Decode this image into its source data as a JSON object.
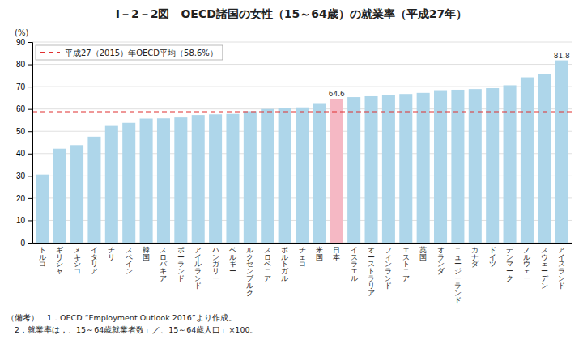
{
  "chart_data": {
    "type": "bar",
    "title": "I－2－2図　OECD諸国の女性（15～64歳）の就業率（平成27年）",
    "ylabel": "(%)",
    "categories": [
      "トルコ",
      "ギリシャ",
      "メキシコ",
      "イタリア",
      "チリ",
      "スペイン",
      "韓国",
      "スロバキア",
      "ポーランド",
      "アイルランド",
      "ハンガリー",
      "ベルギー",
      "ルクセンブルク",
      "スロベニア",
      "ポルトガル",
      "チェコ",
      "米国",
      "日本",
      "イスラエル",
      "オーストラリア",
      "フィンランド",
      "エストニア",
      "英国",
      "オランダ",
      "ニュージーランド",
      "カナダ",
      "ドイツ",
      "デンマーク",
      "ノルウェー",
      "スウェーデン",
      "アイスランド"
    ],
    "values": [
      30.6,
      42.2,
      43.8,
      47.6,
      52.4,
      53.8,
      55.7,
      55.8,
      56.2,
      57.3,
      57.6,
      57.8,
      59.0,
      60.0,
      60.3,
      60.7,
      62.6,
      64.6,
      65.3,
      65.7,
      66.4,
      66.7,
      67.2,
      68.4,
      68.6,
      68.9,
      69.3,
      70.6,
      74.2,
      75.5,
      81.8
    ],
    "colors": [
      "#aed6ea",
      "#aed6ea",
      "#aed6ea",
      "#aed6ea",
      "#aed6ea",
      "#aed6ea",
      "#aed6ea",
      "#aed6ea",
      "#aed6ea",
      "#aed6ea",
      "#aed6ea",
      "#aed6ea",
      "#aed6ea",
      "#aed6ea",
      "#aed6ea",
      "#aed6ea",
      "#aed6ea",
      "#f5b8c4",
      "#aed6ea",
      "#aed6ea",
      "#aed6ea",
      "#aed6ea",
      "#aed6ea",
      "#aed6ea",
      "#aed6ea",
      "#aed6ea",
      "#aed6ea",
      "#aed6ea",
      "#aed6ea",
      "#aed6ea",
      "#aed6ea"
    ],
    "reference_line": {
      "value": 58.6,
      "label": "平成27（2015）年OECD平均（58.6%）",
      "color": "#e03030",
      "line_style": "dashed"
    },
    "annotations": [
      {
        "category": "日本",
        "text": "64.6"
      },
      {
        "category": "アイスランド",
        "text": "81.8"
      }
    ],
    "ylim": [
      0,
      90
    ],
    "yticks": [
      0,
      10,
      20,
      30,
      40,
      50,
      60,
      70,
      80,
      90
    ],
    "grid": true,
    "legend": "top-left",
    "notes": [
      "（備考）　1．OECD “Employment Outlook 2016”より作成。",
      "　2．就業率は，、15～64歳就業者数」／、15～64歳人口」×100。"
    ]
  }
}
